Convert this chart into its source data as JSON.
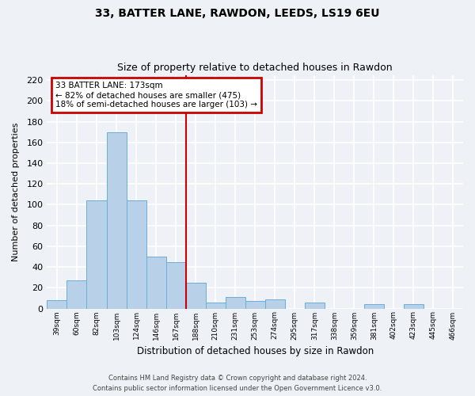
{
  "title": "33, BATTER LANE, RAWDON, LEEDS, LS19 6EU",
  "subtitle": "Size of property relative to detached houses in Rawdon",
  "xlabel": "Distribution of detached houses by size in Rawdon",
  "ylabel": "Number of detached properties",
  "bin_labels": [
    "39sqm",
    "60sqm",
    "82sqm",
    "103sqm",
    "124sqm",
    "146sqm",
    "167sqm",
    "188sqm",
    "210sqm",
    "231sqm",
    "253sqm",
    "274sqm",
    "295sqm",
    "317sqm",
    "338sqm",
    "359sqm",
    "381sqm",
    "402sqm",
    "423sqm",
    "445sqm",
    "466sqm"
  ],
  "bar_heights": [
    8,
    27,
    104,
    170,
    104,
    50,
    45,
    25,
    6,
    11,
    7,
    9,
    0,
    6,
    0,
    0,
    4,
    0,
    4,
    0,
    0
  ],
  "bar_color": "#b8d0e8",
  "bar_edge_color": "#6aaed6",
  "ylim": [
    0,
    225
  ],
  "yticks": [
    0,
    20,
    40,
    60,
    80,
    100,
    120,
    140,
    160,
    180,
    200,
    220
  ],
  "vline_x_bar_idx": 6.5,
  "vline_color": "#cc0000",
  "annotation_title": "33 BATTER LANE: 173sqm",
  "annotation_line1": "← 82% of detached houses are smaller (475)",
  "annotation_line2": "18% of semi-detached houses are larger (103) →",
  "annotation_box_color": "#cc0000",
  "footer_line1": "Contains HM Land Registry data © Crown copyright and database right 2024.",
  "footer_line2": "Contains public sector information licensed under the Open Government Licence v3.0.",
  "background_color": "#eef2f7",
  "grid_color": "#ffffff",
  "fig_width": 6.0,
  "fig_height": 5.0,
  "dpi": 100
}
